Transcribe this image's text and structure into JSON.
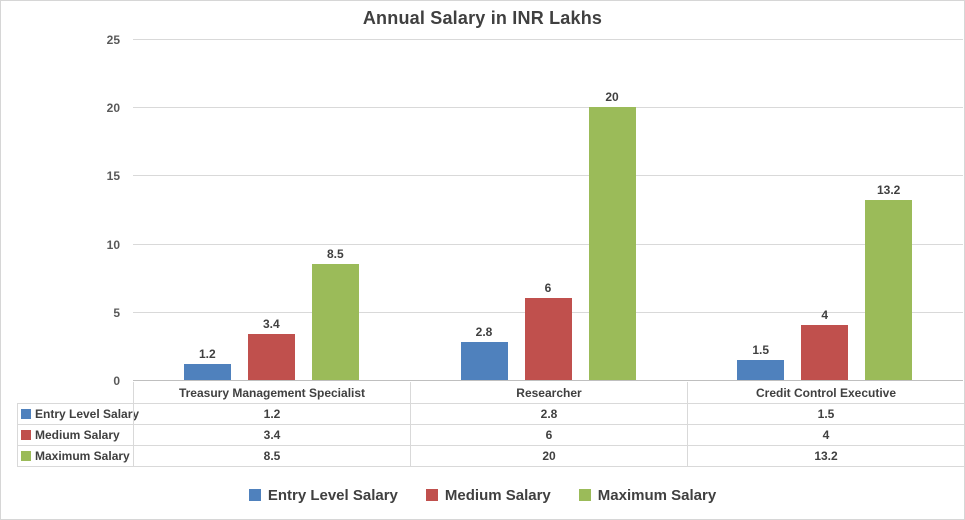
{
  "chart_data": {
    "type": "bar",
    "title": "Annual Salary in INR Lakhs",
    "categories": [
      "Treasury Management Specialist",
      "Researcher",
      "Credit Control Executive"
    ],
    "series": [
      {
        "name": "Entry Level Salary",
        "color": "#4F81BD",
        "values": [
          1.2,
          2.8,
          1.5
        ]
      },
      {
        "name": "Medium Salary",
        "color": "#C0504D",
        "values": [
          3.4,
          6,
          4
        ]
      },
      {
        "name": "Maximum Salary",
        "color": "#9BBB59",
        "values": [
          8.5,
          20,
          13.2
        ]
      }
    ],
    "ylim": [
      0,
      25
    ],
    "yticks": [
      0,
      5,
      10,
      15,
      20,
      25
    ],
    "grid": true,
    "data_labels": true,
    "data_table": true,
    "legend_position": "bottom"
  },
  "colors": {
    "title_text": "#404040",
    "axis_text": "#595959",
    "gridline": "#D9D9D9",
    "axis_line": "#BFBFBF",
    "table_border": "#D9D9D9",
    "background": "#FFFFFF"
  }
}
